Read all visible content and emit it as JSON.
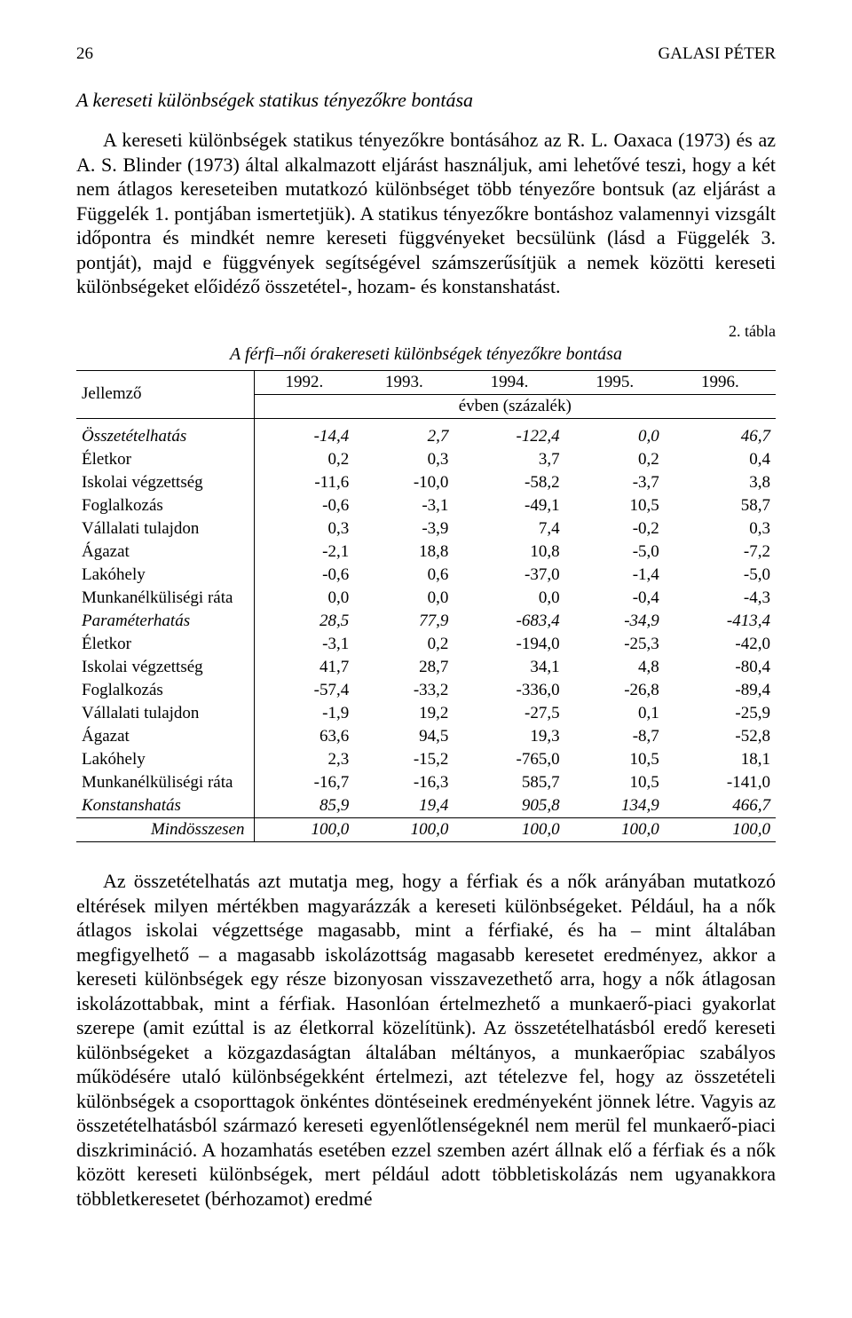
{
  "header": {
    "page_number": "26",
    "author": "GALASI PÉTER"
  },
  "section_title": "A kereseti különbségek statikus tényezőkre bontása",
  "paragraph1": "A kereseti különbségek statikus tényezőkre bontásához az R. L. Oaxaca (1973) és az A. S. Blinder (1973) által alkalmazott eljárást használjuk, ami lehetővé teszi, hogy a két nem átlagos kereseteiben mutatkozó különbséget több tényezőre bontsuk (az eljárást a Függelék 1. pontjában ismertetjük). A statikus tényezőkre bontáshoz valamennyi vizsgált időpontra és mindkét nemre kereseti függvényeket becsülünk (lásd a Függelék 3. pontját), majd e függvények segítségével számszerűsítjük a nemek közötti kereseti különbségeket előidéző összetétel-, hozam- és konstanshatást.",
  "table": {
    "caption_right": "2. tábla",
    "title": "A férfi–női órakereseti különbségek tényezőkre bontása",
    "col_label": "Jellemző",
    "year_cols": [
      "1992.",
      "1993.",
      "1994.",
      "1995.",
      "1996."
    ],
    "unit_row": "évben (százalék)",
    "rows": [
      {
        "label": "Összetételhatás",
        "bold": true,
        "values": [
          "-14,4",
          "2,7",
          "-122,4",
          "0,0",
          "46,7"
        ]
      },
      {
        "label": "Életkor",
        "sub": true,
        "values": [
          "0,2",
          "0,3",
          "3,7",
          "0,2",
          "0,4"
        ]
      },
      {
        "label": "Iskolai végzettség",
        "sub": true,
        "values": [
          "-11,6",
          "-10,0",
          "-58,2",
          "-3,7",
          "3,8"
        ]
      },
      {
        "label": "Foglalkozás",
        "sub": true,
        "values": [
          "-0,6",
          "-3,1",
          "-49,1",
          "10,5",
          "58,7"
        ]
      },
      {
        "label": "Vállalati tulajdon",
        "sub": true,
        "values": [
          "0,3",
          "-3,9",
          "7,4",
          "-0,2",
          "0,3"
        ]
      },
      {
        "label": "Ágazat",
        "sub": true,
        "values": [
          "-2,1",
          "18,8",
          "10,8",
          "-5,0",
          "-7,2"
        ]
      },
      {
        "label": "Lakóhely",
        "sub": true,
        "values": [
          "-0,6",
          "0,6",
          "-37,0",
          "-1,4",
          "-5,0"
        ]
      },
      {
        "label": "Munkanélküliségi ráta",
        "sub": true,
        "values": [
          "0,0",
          "0,0",
          "0,0",
          "-0,4",
          "-4,3"
        ]
      },
      {
        "label": "Paraméterhatás",
        "bold": true,
        "values": [
          "28,5",
          "77,9",
          "-683,4",
          "-34,9",
          "-413,4"
        ]
      },
      {
        "label": "Életkor",
        "sub": true,
        "values": [
          "-3,1",
          "0,2",
          "-194,0",
          "-25,3",
          "-42,0"
        ]
      },
      {
        "label": "Iskolai végzettség",
        "sub": true,
        "values": [
          "41,7",
          "28,7",
          "34,1",
          "4,8",
          "-80,4"
        ]
      },
      {
        "label": "Foglalkozás",
        "sub": true,
        "values": [
          "-57,4",
          "-33,2",
          "-336,0",
          "-26,8",
          "-89,4"
        ]
      },
      {
        "label": "Vállalati tulajdon",
        "sub": true,
        "values": [
          "-1,9",
          "19,2",
          "-27,5",
          "0,1",
          "-25,9"
        ]
      },
      {
        "label": "Ágazat",
        "sub": true,
        "values": [
          "63,6",
          "94,5",
          "19,3",
          "-8,7",
          "-52,8"
        ]
      },
      {
        "label": "Lakóhely",
        "sub": true,
        "values": [
          "2,3",
          "-15,2",
          "-765,0",
          "10,5",
          "18,1"
        ]
      },
      {
        "label": "Munkanélküliségi ráta",
        "sub": true,
        "values": [
          "-16,7",
          "-16,3",
          "585,7",
          "10,5",
          "-141,0"
        ]
      },
      {
        "label": "Konstanshatás",
        "bold": true,
        "values": [
          "85,9",
          "19,4",
          "905,8",
          "134,9",
          "466,7"
        ]
      }
    ],
    "total": {
      "label": "Mindösszesen",
      "values": [
        "100,0",
        "100,0",
        "100,0",
        "100,0",
        "100,0"
      ]
    }
  },
  "paragraph2": "Az összetételhatás azt mutatja meg, hogy a férfiak és a nők arányában mutatkozó eltérések milyen mértékben magyarázzák a kereseti különbségeket. Például, ha a nők átlagos iskolai végzettsége magasabb, mint a férfiaké, és ha – mint általában megfigyelhető – a magasabb iskolázottság magasabb keresetet eredményez, akkor a kereseti különbségek egy része bizonyosan visszavezethető arra, hogy a nők átlagosan iskolázottabbak, mint a férfiak. Hasonlóan értelmezhető a munkaerő-piaci gyakorlat szerepe (amit ezúttal is az életkorral közelítünk). Az összetételhatásból eredő kereseti különbségeket a közgazdaságtan általában méltányos, a munkaerőpiac szabályos működésére utaló különbségekként értelmezi, azt tételezve fel, hogy az összetételi különbségek a csoporttagok önkéntes döntéseinek eredményeként jönnek létre. Vagyis az összetételhatásból származó kereseti egyenlőtlenségeknél nem merül fel munkaerő-piaci diszkrimináció. A hozamhatás esetében ezzel szemben azért állnak elő a férfiak és a nők között kereseti különbségek, mert például adott többletiskolázás nem ugyanakkora többletkeresetet (bérhozamot) eredmé"
}
